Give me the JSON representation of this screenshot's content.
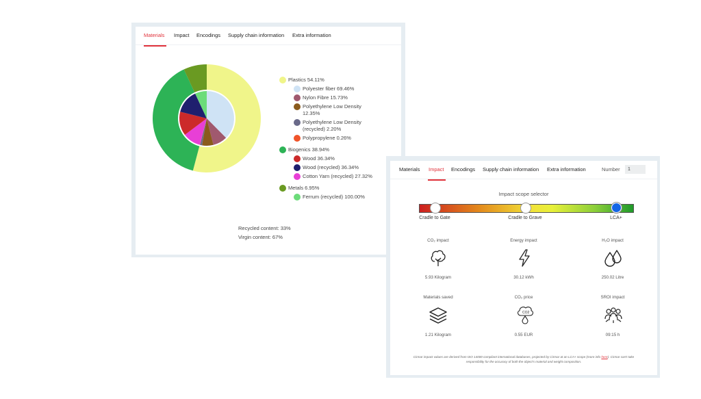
{
  "materials_panel": {
    "tabs": [
      {
        "label": "Materials",
        "active": true
      },
      {
        "label": "Impact",
        "active": false
      },
      {
        "label": "Encodings",
        "active": false
      },
      {
        "label": "Supply chain information",
        "active": false
      },
      {
        "label": "Extra information",
        "active": false
      }
    ],
    "legend": [
      {
        "label": "Plastics 54.11%",
        "color": "#f0f58a",
        "level": 0
      },
      {
        "label": "Polyester fiber 69.46%",
        "color": "#cfe3f5",
        "level": 1
      },
      {
        "label": "Nylon Fibre 15.73%",
        "color": "#a0596e",
        "level": 1
      },
      {
        "label": "Polyethylene Low Density",
        "color": "#8a5a1c",
        "level": 1,
        "line2": "12.35%"
      },
      {
        "label": "Polyethylene Low Density",
        "color": "#6a6a8a",
        "level": 1,
        "line2": "(recycled) 2.20%"
      },
      {
        "label": "Polypropylene 0.26%",
        "color": "#f0542a",
        "level": 1
      },
      {
        "label": "Biogenics 38.94%",
        "color": "#2db356",
        "level": 0
      },
      {
        "label": "Wood 36.34%",
        "color": "#cc2a2a",
        "level": 1
      },
      {
        "label": "Wood (recycled) 36.34%",
        "color": "#1f1f6e",
        "level": 1
      },
      {
        "label": "Cotton Yarn (recycled) 27.32%",
        "color": "#e83fd6",
        "level": 1
      },
      {
        "label": "Metals 6.95%",
        "color": "#6a9a22",
        "level": 0
      },
      {
        "label": "Ferrum (recycled) 100.00%",
        "color": "#6cdc7a",
        "level": 1
      }
    ],
    "recycled_content": "Recycled content: 33%",
    "virgin_content": "Virgin content: 67%"
  },
  "chart_data": {
    "type": "pie",
    "outer": [
      {
        "name": "Plastics",
        "value": 54.11,
        "color": "#f0f58a"
      },
      {
        "name": "Biogenics",
        "value": 38.94,
        "color": "#2db356"
      },
      {
        "name": "Metals",
        "value": 6.95,
        "color": "#6a9a22"
      }
    ],
    "inner": [
      {
        "name": "Polyester fiber",
        "value": 37.58,
        "color": "#cfe3f5"
      },
      {
        "name": "Nylon Fibre",
        "value": 8.51,
        "color": "#a0596e"
      },
      {
        "name": "Polyethylene Low Density",
        "value": 6.68,
        "color": "#8a5a1c"
      },
      {
        "name": "Polyethylene Low Density (recycled)",
        "value": 1.19,
        "color": "#6a6a8a"
      },
      {
        "name": "Polypropylene",
        "value": 0.14,
        "color": "#f0542a"
      },
      {
        "name": "Cotton Yarn (recycled)",
        "value": 10.64,
        "color": "#e83fd6"
      },
      {
        "name": "Wood",
        "value": 14.15,
        "color": "#cc2a2a"
      },
      {
        "name": "Wood (recycled)",
        "value": 14.15,
        "color": "#1f1f6e"
      },
      {
        "name": "Ferrum (recycled)",
        "value": 6.95,
        "color": "#6cdc7a"
      }
    ]
  },
  "impact_panel": {
    "tabs": [
      {
        "label": "Materials",
        "active": false
      },
      {
        "label": "Impact",
        "active": true
      },
      {
        "label": "Encodings",
        "active": false
      },
      {
        "label": "Supply chain information",
        "active": false
      },
      {
        "label": "Extra information",
        "active": false
      }
    ],
    "number_label": "Number",
    "number_value": "1",
    "scope_title": "Impact scope selector",
    "scope_stops": [
      {
        "label": "Cradle to Gate",
        "selected": false
      },
      {
        "label": "Cradle to Grave",
        "selected": false
      },
      {
        "label": "LCA+",
        "selected": true
      }
    ],
    "metrics": [
      {
        "title": "CO₂ impact",
        "value": "5.93 Kilogram",
        "icon": "tree-icon"
      },
      {
        "title": "Energy impact",
        "value": "30.12 kWh",
        "icon": "lightning-icon"
      },
      {
        "title": "H₂O impact",
        "value": "250.02 Litre",
        "icon": "water-drops-icon"
      },
      {
        "title": "Materials saved",
        "value": "1.21 Kilogram",
        "icon": "layers-icon"
      },
      {
        "title": "CO₂ price",
        "value": "0.55 EUR",
        "icon": "co2-cloud-icon"
      },
      {
        "title": "SROI impact",
        "value": "09:15 h",
        "icon": "people-icon"
      }
    ],
    "disclaimer_line1": "Cirmar impact values are derived from ISO 14000 compliant international databases, projected by Cirmar at an LCA+ scope (more info",
    "disclaimer_link": "here",
    "disclaimer_line1_end": "). Cirmar can't take",
    "disclaimer_line2": "responsibility for the accuracy of both the object's material and weight composition."
  }
}
